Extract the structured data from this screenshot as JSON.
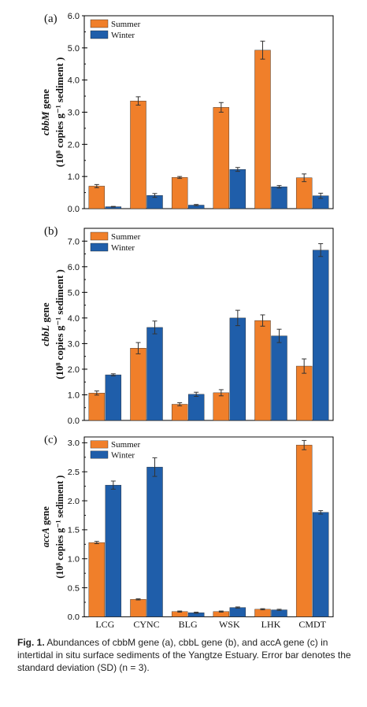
{
  "colors": {
    "summer": "#F07F2A",
    "winter": "#1F5EAA",
    "axis": "#000000",
    "error": "#333333"
  },
  "caption": {
    "label": "Fig. 1.",
    "text": "Abundances of cbbM gene (a), cbbL gene (b), and accA gene (c) in intertidal in situ surface sediments of the Yangtze Estuary. Error bar denotes the standard deviation (SD) (n = 3)."
  },
  "chart_data": [
    {
      "type": "bar",
      "panel_label": "(a)",
      "ylabel_gene": "cbbM",
      "ylabel_gene_suffix": " gene",
      "ylabel_units": "(10⁸ copies g⁻¹ sediment )",
      "categories": [
        "LCG",
        "CYNC",
        "BLG",
        "WSK",
        "LHK",
        "CMDT"
      ],
      "ylim": [
        0,
        6
      ],
      "yticks": [
        "0.0",
        "1.0",
        "2.0",
        "3.0",
        "4.0",
        "5.0",
        "6.0"
      ],
      "ytick_values": [
        0,
        1,
        2,
        3,
        4,
        5,
        6
      ],
      "legend": "top-left",
      "series": [
        {
          "name": "Summer",
          "values": [
            0.7,
            3.35,
            0.97,
            3.15,
            4.93,
            0.96
          ],
          "errors": [
            0.05,
            0.13,
            0.03,
            0.15,
            0.28,
            0.12
          ]
        },
        {
          "name": "Winter",
          "values": [
            0.06,
            0.41,
            0.11,
            1.22,
            0.68,
            0.4
          ],
          "errors": [
            0.01,
            0.06,
            0.02,
            0.06,
            0.04,
            0.08
          ]
        }
      ]
    },
    {
      "type": "bar",
      "panel_label": "(b)",
      "ylabel_gene": "cbbL",
      "ylabel_gene_suffix": " gene",
      "ylabel_units": "(10⁸ copies g⁻¹ sediment )",
      "categories": [
        "LCG",
        "CYNC",
        "BLG",
        "WSK",
        "LHK",
        "CMDT"
      ],
      "ylim": [
        0,
        7.5
      ],
      "yticks": [
        "0.0",
        "1.0",
        "2.0",
        "3.0",
        "4.0",
        "5.0",
        "6.0",
        "7.0"
      ],
      "ytick_values": [
        0,
        1,
        2,
        3,
        4,
        5,
        6,
        7
      ],
      "legend": "top-left",
      "series": [
        {
          "name": "Summer",
          "values": [
            1.07,
            2.82,
            0.63,
            1.08,
            3.9,
            2.12
          ],
          "errors": [
            0.08,
            0.22,
            0.06,
            0.12,
            0.22,
            0.28
          ]
        },
        {
          "name": "Winter",
          "values": [
            1.78,
            3.63,
            1.02,
            4.0,
            3.3,
            6.65
          ],
          "errors": [
            0.04,
            0.25,
            0.08,
            0.3,
            0.26,
            0.25
          ]
        }
      ]
    },
    {
      "type": "bar",
      "panel_label": "(c)",
      "ylabel_gene": "accA",
      "ylabel_gene_suffix": " gene",
      "ylabel_units": "(10⁸ copies g⁻¹ sediment )",
      "categories": [
        "LCG",
        "CYNC",
        "BLG",
        "WSK",
        "LHK",
        "CMDT"
      ],
      "ylim": [
        0,
        3.1
      ],
      "yticks": [
        "0.0",
        "0.5",
        "1.0",
        "1.5",
        "2.0",
        "2.5",
        "3.0"
      ],
      "ytick_values": [
        0,
        0.5,
        1.0,
        1.5,
        2.0,
        2.5,
        3.0
      ],
      "legend": "top-left",
      "series": [
        {
          "name": "Summer",
          "values": [
            1.28,
            0.3,
            0.09,
            0.09,
            0.13,
            2.96
          ],
          "errors": [
            0.02,
            0.01,
            0.01,
            0.01,
            0.01,
            0.08
          ]
        },
        {
          "name": "Winter",
          "values": [
            2.27,
            2.58,
            0.07,
            0.16,
            0.12,
            1.8
          ],
          "errors": [
            0.07,
            0.16,
            0.01,
            0.01,
            0.01,
            0.03
          ]
        }
      ]
    }
  ]
}
